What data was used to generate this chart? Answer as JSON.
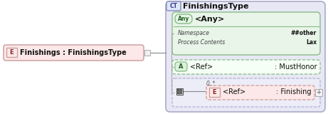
{
  "bg_color": "#ffffff",
  "outer_bg": "#e8e8f5",
  "outer_border": "#aaaacc",
  "inner_green_bg": "#e8f5e8",
  "inner_green_border": "#88bb88",
  "pink_bg": "#fce8e8",
  "pink_border": "#cc9999",
  "ct_box_bg": "#dde8f8",
  "ct_box_border": "#8888bb",
  "title": "FinishingsType",
  "ct_label": "CT",
  "any_label": "Any",
  "any_text": "<Any>",
  "namespace_label": "Namespace",
  "namespace_value": "##other",
  "process_label": "Process Contents",
  "process_value": "Lax",
  "a_label": "A",
  "ref_a_text": "<Ref>",
  "musthonor_text": ": MustHonor",
  "e_label_left": "E",
  "finishings_text": "Finishings : FinishingsType",
  "e_label_right": "E",
  "ref_e_text": "<Ref>",
  "finishing_text": ": Finishing",
  "mult_text": "0..*",
  "seq_box_bg": "#ededf8",
  "seq_box_border": "#aaaacc",
  "gray_connector": "#888888",
  "icon_color": "#555555"
}
